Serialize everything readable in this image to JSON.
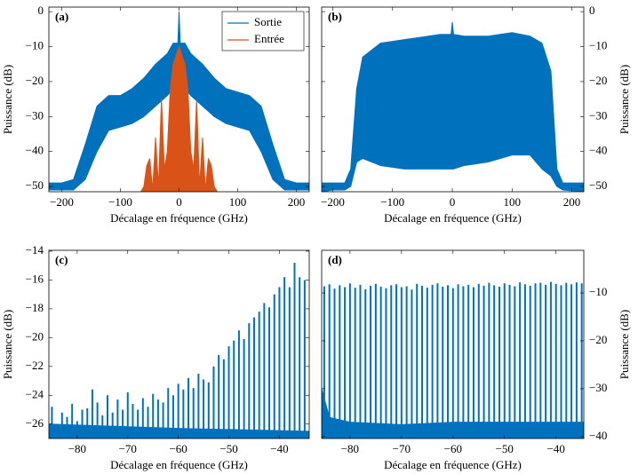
{
  "chart_data": [
    {
      "type": "area",
      "panel_label": "(a)",
      "xlabel": "Décalage en fréquence (GHz)",
      "ylabel": "Puissance (dB)",
      "yaxis_side": "left",
      "legend": "upper right",
      "xlim": [
        -222,
        222
      ],
      "ylim": [
        -51.5,
        1.3
      ],
      "xticks": [
        {
          "value": -200,
          "label": "−200"
        },
        {
          "value": -100,
          "label": "−100"
        },
        0,
        100,
        200
      ],
      "yticks": [
        {
          "value": -50,
          "label": "−50"
        },
        {
          "value": -40,
          "label": "−40"
        },
        {
          "value": -30,
          "label": "−30"
        },
        {
          "value": -20,
          "label": "−20"
        },
        {
          "value": -10,
          "label": "−10"
        },
        0
      ],
      "series": [
        {
          "name": "Sortie",
          "color": "#0072bd",
          "x": [
            -222,
            -200,
            -180,
            -160,
            -140,
            -120,
            -100,
            -80,
            -60,
            -40,
            -20,
            -10,
            -2,
            0,
            2,
            10,
            20,
            40,
            60,
            80,
            100,
            120,
            140,
            160,
            180,
            200,
            222
          ],
          "values": [
            -49,
            -49,
            -48,
            -38,
            -27,
            -24,
            -24,
            -22,
            -19,
            -15,
            -12,
            -9,
            -9,
            0,
            -9,
            -9,
            -12,
            -15,
            -19,
            -22,
            -23,
            -24,
            -27,
            -38,
            -48,
            -49,
            -49
          ],
          "lower": [
            -51,
            -51,
            -51,
            -48,
            -40,
            -34,
            -33,
            -32,
            -30,
            -27,
            -24,
            -22,
            -22,
            -22,
            -22,
            -22,
            -24,
            -27,
            -30,
            -32,
            -33,
            -34,
            -40,
            -48,
            -51,
            -51,
            -51
          ]
        },
        {
          "name": "Entrée",
          "color": "#d95319",
          "x": [
            -65,
            -60,
            -55,
            -50,
            -45,
            -40,
            -35,
            -30,
            -25,
            -20,
            -15,
            -10,
            0,
            10,
            15,
            20,
            25,
            30,
            35,
            40,
            45,
            50,
            55,
            60,
            65
          ],
          "values": [
            -51.5,
            -50,
            -44,
            -42,
            -51,
            -36,
            -50,
            -25,
            -45,
            -40,
            -22,
            -15,
            -10,
            -15,
            -22,
            -40,
            -45,
            -25,
            -50,
            -36,
            -51,
            -42,
            -44,
            -50,
            -51.5
          ]
        }
      ]
    },
    {
      "type": "area",
      "panel_label": "(b)",
      "xlabel": "Décalage en fréquence (GHz)",
      "ylabel": "Puissance (dB)",
      "yaxis_side": "right",
      "xlim": [
        -218.6,
        220
      ],
      "ylim": [
        -51.5,
        1.3
      ],
      "xticks": [
        {
          "value": -200,
          "label": "−200"
        },
        {
          "value": -100,
          "label": "−100"
        },
        0,
        100,
        200
      ],
      "yticks": [
        {
          "value": -50,
          "label": "−50"
        },
        {
          "value": -40,
          "label": "−40"
        },
        {
          "value": -30,
          "label": "−30"
        },
        {
          "value": -20,
          "label": "−20"
        },
        {
          "value": -10,
          "label": "−10"
        },
        0
      ],
      "series": [
        {
          "color": "#0072bd",
          "x": [
            -218,
            -200,
            -180,
            -170,
            -160,
            -150,
            -120,
            -80,
            -40,
            -20,
            -2,
            0,
            2,
            20,
            60,
            100,
            130,
            150,
            165,
            175,
            185,
            220
          ],
          "values": [
            -49,
            -49,
            -49,
            -45,
            -22,
            -13,
            -9,
            -8,
            -7,
            -6.5,
            -6.5,
            -3,
            -6.5,
            -7,
            -7,
            -6,
            -7,
            -9,
            -17,
            -45,
            -49,
            -49
          ],
          "lower": [
            -51.5,
            -51,
            -51,
            -50,
            -43,
            -42,
            -44,
            -45,
            -45,
            -45,
            -45,
            -45,
            -45,
            -44,
            -43,
            -41,
            -41,
            -45,
            -47,
            -50,
            -51,
            -51.5
          ]
        }
      ]
    },
    {
      "type": "comb",
      "panel_label": "(c)",
      "xlabel": "Décalage en fréquence (GHz)",
      "ylabel": "Puissance (dB)",
      "yaxis_side": "left",
      "xlim": [
        -85.6,
        -34.1
      ],
      "ylim": [
        -27,
        -13.94
      ],
      "xticks": [
        {
          "value": -80,
          "label": "−80"
        },
        {
          "value": -70,
          "label": "−70"
        },
        {
          "value": -60,
          "label": "−60"
        },
        {
          "value": -50,
          "label": "−50"
        },
        {
          "value": -40,
          "label": "−40"
        }
      ],
      "yticks": [
        {
          "value": -26,
          "label": "−26"
        },
        {
          "value": -24,
          "label": "−24"
        },
        {
          "value": -22,
          "label": "−22"
        },
        {
          "value": -20,
          "label": "−20"
        },
        {
          "value": -18,
          "label": "−18"
        },
        {
          "value": -16,
          "label": "−16"
        },
        {
          "value": -14,
          "label": "−14"
        }
      ],
      "series": [
        {
          "color": "#0072bd",
          "x": [
            -85,
            -84,
            -83,
            -82,
            -81,
            -80,
            -79,
            -78,
            -77,
            -76,
            -75,
            -74,
            -73,
            -72,
            -71,
            -70,
            -69,
            -68,
            -67,
            -66,
            -65,
            -64,
            -63,
            -62,
            -61,
            -60,
            -59,
            -58,
            -57,
            -56,
            -55,
            -54,
            -53,
            -52,
            -51,
            -50,
            -49,
            -48,
            -47,
            -46,
            -45,
            -44,
            -43,
            -42,
            -41,
            -40,
            -39,
            -38,
            -37,
            -36,
            -35
          ],
          "values": [
            -24.8,
            -26,
            -25.2,
            -25.5,
            -24.6,
            -25.8,
            -25,
            -24.9,
            -23.6,
            -24.5,
            -25.4,
            -24,
            -25.2,
            -24.3,
            -25,
            -23.8,
            -24.6,
            -25,
            -24.2,
            -24.8,
            -23.9,
            -24.3,
            -24.5,
            -23.5,
            -24,
            -23.2,
            -23.6,
            -22.8,
            -23.5,
            -22.5,
            -22.9,
            -23.1,
            -22,
            -21.2,
            -21.5,
            -20.6,
            -20.2,
            -19.5,
            -20.1,
            -19,
            -18.6,
            -18.2,
            -17.6,
            -17.9,
            -17,
            -16.5,
            -15.8,
            -16.5,
            -14.8,
            -15.8,
            -16
          ]
        },
        {
          "type": "area",
          "color": "#0072bd",
          "x": [
            -85.6,
            -60,
            -34.1
          ],
          "values": [
            -26,
            -26.3,
            -26.5
          ]
        }
      ]
    },
    {
      "type": "comb",
      "panel_label": "(d)",
      "xlabel": "Décalage en fréquence (GHz)",
      "ylabel": "Puissance (dB)",
      "yaxis_side": "right",
      "xlim": [
        -85.5,
        -34.6
      ],
      "ylim": [
        -40.4,
        -1.1
      ],
      "xticks": [
        {
          "value": -80,
          "label": "−80"
        },
        {
          "value": -70,
          "label": "−70"
        },
        {
          "value": -60,
          "label": "−60"
        },
        {
          "value": -50,
          "label": "−50"
        },
        {
          "value": -40,
          "label": "−40"
        }
      ],
      "yticks": [
        {
          "value": -40,
          "label": "−40"
        },
        {
          "value": -30,
          "label": "−30"
        },
        {
          "value": -20,
          "label": "−20"
        },
        {
          "value": -10,
          "label": "−10"
        }
      ],
      "series": [
        {
          "color": "#0072bd",
          "x": [
            -85,
            -84,
            -83,
            -82,
            -81,
            -80,
            -79,
            -78,
            -77,
            -76,
            -75,
            -74,
            -73,
            -72,
            -71,
            -70,
            -69,
            -68,
            -67,
            -66,
            -65,
            -64,
            -63,
            -62,
            -61,
            -60,
            -59,
            -58,
            -57,
            -56,
            -55,
            -54,
            -53,
            -52,
            -51,
            -50,
            -49,
            -48,
            -47,
            -46,
            -45,
            -44,
            -43,
            -42,
            -41,
            -40,
            -39,
            -38,
            -37,
            -36,
            -35
          ],
          "values": [
            -8.6,
            -8.2,
            -9.1,
            -8.4,
            -8.8,
            -8.0,
            -8.9,
            -8.3,
            -9.2,
            -8.5,
            -8.1,
            -8.7,
            -9.0,
            -8.4,
            -8.2,
            -8.8,
            -8.6,
            -9.3,
            -8.1,
            -8.5,
            -8.9,
            -8.3,
            -8.0,
            -8.7,
            -8.4,
            -9.0,
            -8.2,
            -8.6,
            -8.3,
            -8.8,
            -8.1,
            -8.5,
            -7.9,
            -8.4,
            -8.7,
            -8.0,
            -8.3,
            -8.6,
            -7.8,
            -8.2,
            -8.5,
            -8.0,
            -7.9,
            -8.3,
            -7.7,
            -8.1,
            -8.4,
            -7.9,
            -8.2,
            -7.8,
            -8.0
          ]
        },
        {
          "type": "area",
          "color": "#0072bd",
          "x": [
            -85.5,
            -84,
            -80,
            -70,
            -60,
            -50,
            -40,
            -34.6
          ],
          "values": [
            -30,
            -36,
            -37,
            -37.5,
            -37,
            -37,
            -37,
            -37
          ]
        }
      ]
    }
  ]
}
